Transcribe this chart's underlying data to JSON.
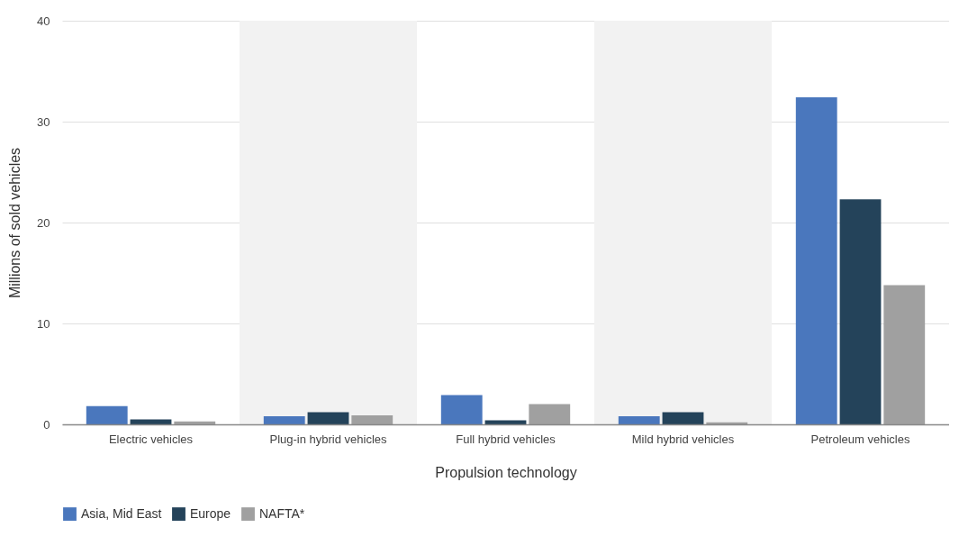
{
  "chart_data": {
    "type": "bar",
    "xlabel": "Propulsion technology",
    "ylabel": "Millions of sold vehicles",
    "categories": [
      "Electric vehicles",
      "Plug-in hybrid vehicles",
      "Full hybrid vehicles",
      "Mild hybrid vehicles",
      "Petroleum vehicles"
    ],
    "series": [
      {
        "name": "Asia, Mid East",
        "color": "#4a77bd",
        "values": [
          1.8,
          0.8,
          2.9,
          0.8,
          32.4
        ]
      },
      {
        "name": "Europe",
        "color": "#24435a",
        "values": [
          0.5,
          1.2,
          0.4,
          1.2,
          22.3
        ]
      },
      {
        "name": "NAFTA*",
        "color": "#a0a0a0",
        "values": [
          0.3,
          0.9,
          2.0,
          0.2,
          13.8
        ]
      }
    ],
    "bands": [
      {
        "axis": "x",
        "from": "Plug-in hybrid vehicles",
        "to": "Plug-in hybrid vehicles",
        "color": "#f2f2f2"
      },
      {
        "axis": "x",
        "from": "Mild hybrid vehicles",
        "to": "Mild hybrid vehicles",
        "color": "#f2f2f2"
      }
    ],
    "ylim": [
      0,
      40
    ],
    "yticks": [
      0,
      10,
      20,
      30,
      40
    ],
    "grid": "y",
    "legend": "bottom"
  }
}
